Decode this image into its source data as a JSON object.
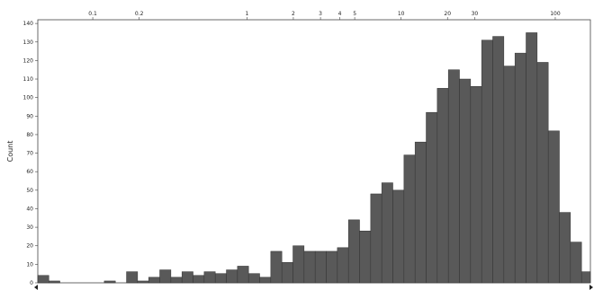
{
  "chart_data": {
    "type": "bar",
    "title": "",
    "xlabel": "",
    "ylabel": "Count",
    "x_scale": "log",
    "xlim": [
      0.044,
      169
    ],
    "ylim": [
      0,
      142
    ],
    "grid": false,
    "legend": "none",
    "x_ticks": [
      {
        "value": 0.1,
        "label": "0.1"
      },
      {
        "value": 0.2,
        "label": "0.2"
      },
      {
        "value": 1,
        "label": "1"
      },
      {
        "value": 2,
        "label": "2"
      },
      {
        "value": 3,
        "label": "3"
      },
      {
        "value": 4,
        "label": "4"
      },
      {
        "value": 5,
        "label": "5"
      },
      {
        "value": 10,
        "label": "10"
      },
      {
        "value": 20,
        "label": "20"
      },
      {
        "value": 30,
        "label": "30"
      },
      {
        "value": 100,
        "label": "100"
      }
    ],
    "y_ticks": [
      0,
      10,
      20,
      30,
      40,
      50,
      60,
      70,
      80,
      90,
      100,
      110,
      120,
      130,
      140
    ],
    "bin_edges": [
      0.044,
      0.0519,
      0.0612,
      0.0723,
      0.0853,
      0.1006,
      0.1188,
      0.1402,
      0.1655,
      0.1953,
      0.2305,
      0.272,
      0.3211,
      0.379,
      0.4473,
      0.528,
      0.6232,
      0.7355,
      0.8682,
      1.0247,
      1.2095,
      1.4276,
      1.685,
      1.9888,
      2.3474,
      2.7707,
      3.2703,
      3.86,
      4.556,
      5.3776,
      6.3472,
      7.4917,
      8.8426,
      10.437,
      12.319,
      14.54,
      17.162,
      20.257,
      23.909,
      28.221,
      33.309,
      39.315,
      46.404,
      54.772,
      64.648,
      76.305,
      90.064,
      106.3,
      125.47,
      148.1,
      174.8
    ],
    "values": [
      4,
      1,
      0,
      0,
      0,
      0,
      1,
      0,
      6,
      1,
      3,
      7,
      3,
      6,
      4,
      6,
      5,
      7,
      9,
      5,
      3,
      17,
      11,
      20,
      17,
      17,
      17,
      19,
      34,
      28,
      48,
      54,
      50,
      69,
      76,
      92,
      105,
      115,
      110,
      106,
      131,
      133,
      117,
      124,
      135,
      119,
      82,
      38,
      22,
      6
    ],
    "colors": {
      "bar_fill": "#595959",
      "bar_stroke": "#333333",
      "axis": "#444444",
      "tick_text": "#222222"
    }
  }
}
